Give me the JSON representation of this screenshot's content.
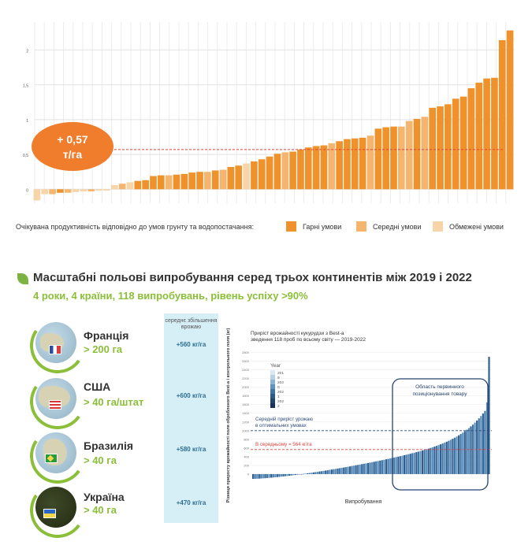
{
  "chart_data": [
    {
      "type": "bar",
      "title": "",
      "xlabel": "",
      "ylabel": "",
      "ylim": [
        -0.2,
        2.4
      ],
      "yticks": [
        "0",
        "0,5",
        "1",
        "1,5",
        "2"
      ],
      "grid": true,
      "annotation": {
        "line1": "+ 0,57",
        "line2": "т/га",
        "value": 0.57
      },
      "legend_title": "Очікувана продуктивність відповідно до умов грунту та водопостачання:",
      "legend": [
        {
          "label": "Гарні умови",
          "color": "#f0922b"
        },
        {
          "label": "Середні умови",
          "color": "#f5b56e"
        },
        {
          "label": "Обмежені умови",
          "color": "#f8d4a9"
        }
      ],
      "series": [
        {
          "name": "Гарні умови",
          "color": "#f0922b"
        },
        {
          "name": "Середні умови",
          "color": "#f5b56e"
        },
        {
          "name": "Обмежені умови",
          "color": "#f8d4a9"
        }
      ],
      "values": [
        -0.16,
        -0.07,
        -0.07,
        -0.05,
        -0.05,
        -0.04,
        -0.03,
        -0.03,
        -0.02,
        -0.02,
        0.06,
        0.08,
        0.1,
        0.12,
        0.13,
        0.19,
        0.2,
        0.2,
        0.21,
        0.22,
        0.24,
        0.25,
        0.25,
        0.27,
        0.28,
        0.32,
        0.34,
        0.37,
        0.4,
        0.43,
        0.47,
        0.51,
        0.53,
        0.54,
        0.57,
        0.6,
        0.62,
        0.63,
        0.66,
        0.69,
        0.72,
        0.73,
        0.74,
        0.77,
        0.87,
        0.89,
        0.9,
        0.9,
        0.98,
        1.01,
        1.04,
        1.17,
        1.19,
        1.22,
        1.3,
        1.33,
        1.45,
        1.53,
        1.59,
        1.6,
        2.14,
        2.28
      ],
      "categories_by_condition": [
        2,
        2,
        1,
        0,
        1,
        2,
        2,
        1,
        2,
        2,
        2,
        1,
        2,
        0,
        0,
        0,
        0,
        1,
        0,
        0,
        0,
        0,
        1,
        0,
        1,
        0,
        0,
        2,
        0,
        0,
        0,
        0,
        1,
        0,
        0,
        0,
        0,
        0,
        1,
        0,
        0,
        0,
        0,
        1,
        0,
        0,
        0,
        1,
        1,
        0,
        1,
        0,
        0,
        0,
        0,
        0,
        0,
        0,
        0,
        0,
        0,
        0
      ]
    },
    {
      "type": "bar",
      "title": "Приріст врожайності кукурудзи з Best-a",
      "subtitle": "зведення 118 проб по всьому світу — 2019-2022",
      "xlabel": "Випробування",
      "ylabel": "Різниця приросту врожайності поля обробленого Best-a і контрольного поля (кг)",
      "ylim": [
        -200,
        2900
      ],
      "yticks": [
        0,
        200,
        400,
        600,
        800,
        1000,
        1200,
        1400,
        1600,
        1800,
        2000,
        2200,
        2400,
        2600,
        2800
      ],
      "legend_title": "Year",
      "legend": [
        "201",
        "9",
        "202",
        "0",
        "202",
        "1",
        "202",
        "2"
      ],
      "lines": [
        {
          "label": "Середній приріст урожаю в оптимальних умовах",
          "value": 1000,
          "color": "#2c4a7c"
        },
        {
          "label": "В середньому = 564 кг/га",
          "value": 564,
          "color": "#e0433b"
        }
      ],
      "highlight_label": "Область первинного позиціонування товару",
      "n_bars": 118,
      "series": [
        {
          "name": "Year",
          "values": "generated sorted increasing from -110 to 2700"
        }
      ]
    }
  ],
  "section": {
    "title": "Масштабні польові випробування серед трьох континентів між 2019 і 2022",
    "subtitle": "4 роки, 4 країни, 118 випробувань, рівень успіху >90%"
  },
  "column": {
    "header": "середнє збільшення врожаю",
    "values": [
      "+560 кг/га",
      "+600 кг/га",
      "+580 кг/га",
      "+470 кг/га"
    ]
  },
  "countries": [
    {
      "name": "Франція",
      "area": "> 200 га"
    },
    {
      "name": "США",
      "area": "> 40 га/штат"
    },
    {
      "name": "Бразилія",
      "area": "> 40 га"
    },
    {
      "name": "Україна",
      "area": "> 40 га"
    }
  ]
}
